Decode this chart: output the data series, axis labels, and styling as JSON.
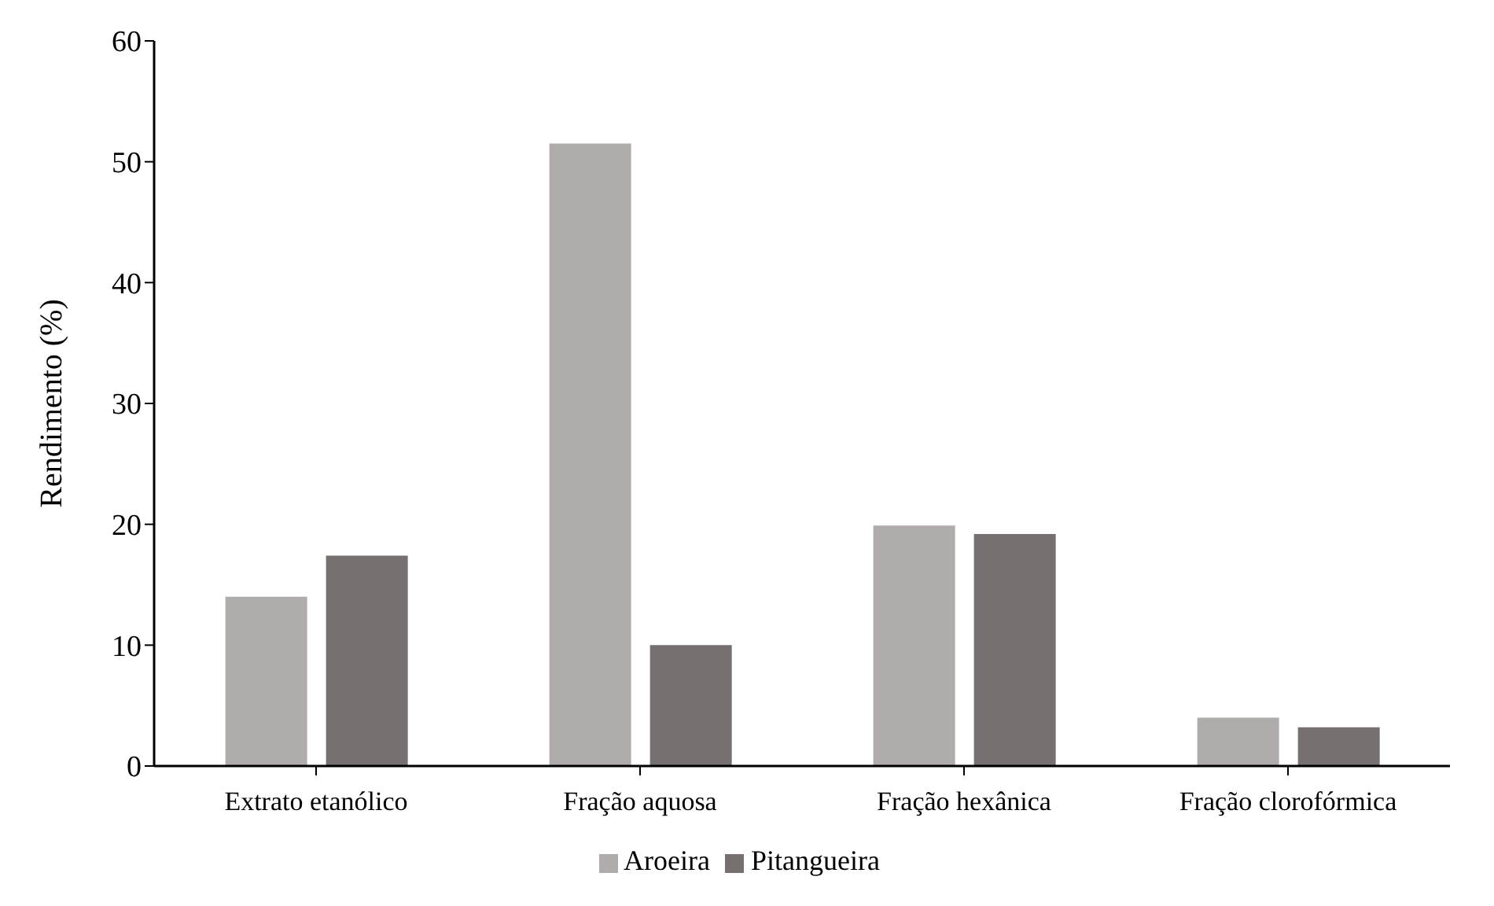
{
  "chart_data": {
    "type": "bar",
    "ylabel": "Rendimento (%)",
    "categories": [
      "Extrato etanólico",
      "Fração aquosa",
      "Fração hexânica",
      "Fração clorofórmica"
    ],
    "series": [
      {
        "name": "Aroeira",
        "color": "#afacab",
        "values": [
          14.0,
          51.5,
          19.9,
          4.0
        ]
      },
      {
        "name": "Pitangueira",
        "color": "#767170",
        "values": [
          17.4,
          10.0,
          19.2,
          3.2
        ]
      }
    ],
    "ylim": [
      0,
      60
    ],
    "yticks": [
      0,
      10,
      20,
      30,
      40,
      50,
      60
    ],
    "grid": false,
    "legend": "bottom"
  }
}
